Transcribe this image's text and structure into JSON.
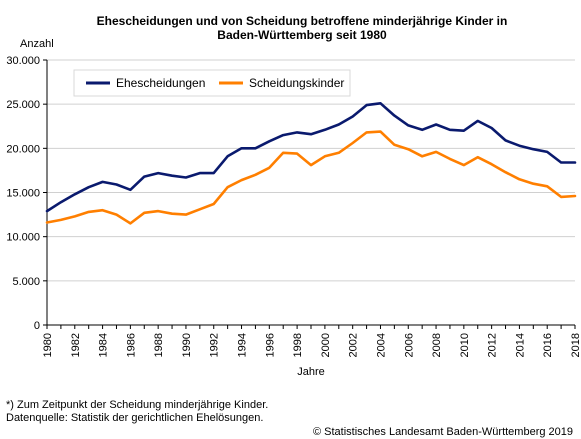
{
  "chart_data": {
    "type": "line",
    "title_lines": [
      "Ehescheidungen und von Scheidung betroffene minderjährige Kinder in",
      "Baden-Württemberg seit 1980"
    ],
    "ylabel": "Anzahl",
    "xlabel": "Jahre",
    "ylim": [
      0,
      30000
    ],
    "yticks": [
      0,
      5000,
      10000,
      15000,
      20000,
      25000,
      30000
    ],
    "ytick_labels": [
      "0",
      "5.000",
      "10.000",
      "15.000",
      "20.000",
      "25.000",
      "30.000"
    ],
    "xlim": [
      1980,
      2018
    ],
    "xtick_labels": [
      "1980",
      "1982",
      "1984",
      "1986",
      "1988",
      "1990",
      "1992",
      "1994",
      "1996",
      "1998",
      "2000",
      "2002",
      "2004",
      "2006",
      "2008",
      "2010",
      "2012",
      "2014",
      "2016",
      "2018"
    ],
    "grid": true,
    "legend_position": "top-left",
    "x": [
      1980,
      1981,
      1982,
      1983,
      1984,
      1985,
      1986,
      1987,
      1988,
      1989,
      1990,
      1991,
      1992,
      1993,
      1994,
      1995,
      1996,
      1997,
      1998,
      1999,
      2000,
      2001,
      2002,
      2003,
      2004,
      2005,
      2006,
      2007,
      2008,
      2009,
      2010,
      2011,
      2012,
      2013,
      2014,
      2015,
      2016,
      2017,
      2018
    ],
    "series": [
      {
        "name": "Ehescheidungen",
        "color": "#0a1a6e",
        "values": [
          12900,
          13900,
          14800,
          15600,
          16200,
          15900,
          15300,
          16800,
          17200,
          16900,
          16700,
          17200,
          17200,
          19100,
          20000,
          20000,
          20800,
          21500,
          21800,
          21600,
          22100,
          22700,
          23600,
          24900,
          25100,
          23700,
          22600,
          22100,
          22700,
          22100,
          22000,
          23100,
          22300,
          20900,
          20300,
          19900,
          19600,
          18400,
          18400
        ]
      },
      {
        "name": "Scheidungskinder",
        "color": "#ff7f00",
        "values": [
          11600,
          11900,
          12300,
          12800,
          13000,
          12500,
          11500,
          12700,
          12900,
          12600,
          12500,
          13100,
          13700,
          15600,
          16400,
          17000,
          17800,
          19500,
          19400,
          18100,
          19100,
          19500,
          20600,
          21800,
          21900,
          20400,
          19900,
          19100,
          19600,
          18800,
          18100,
          19000,
          18200,
          17300,
          16500,
          16000,
          15700,
          14500,
          14600
        ]
      }
    ]
  },
  "footnote": "*) Zum Zeitpunkt der Scheidung minderjährige Kinder.",
  "source": "Datenquelle: Statistik der gerichtlichen Ehelösungen.",
  "copyright": "© Statistisches Landesamt Baden-Württemberg 2019"
}
